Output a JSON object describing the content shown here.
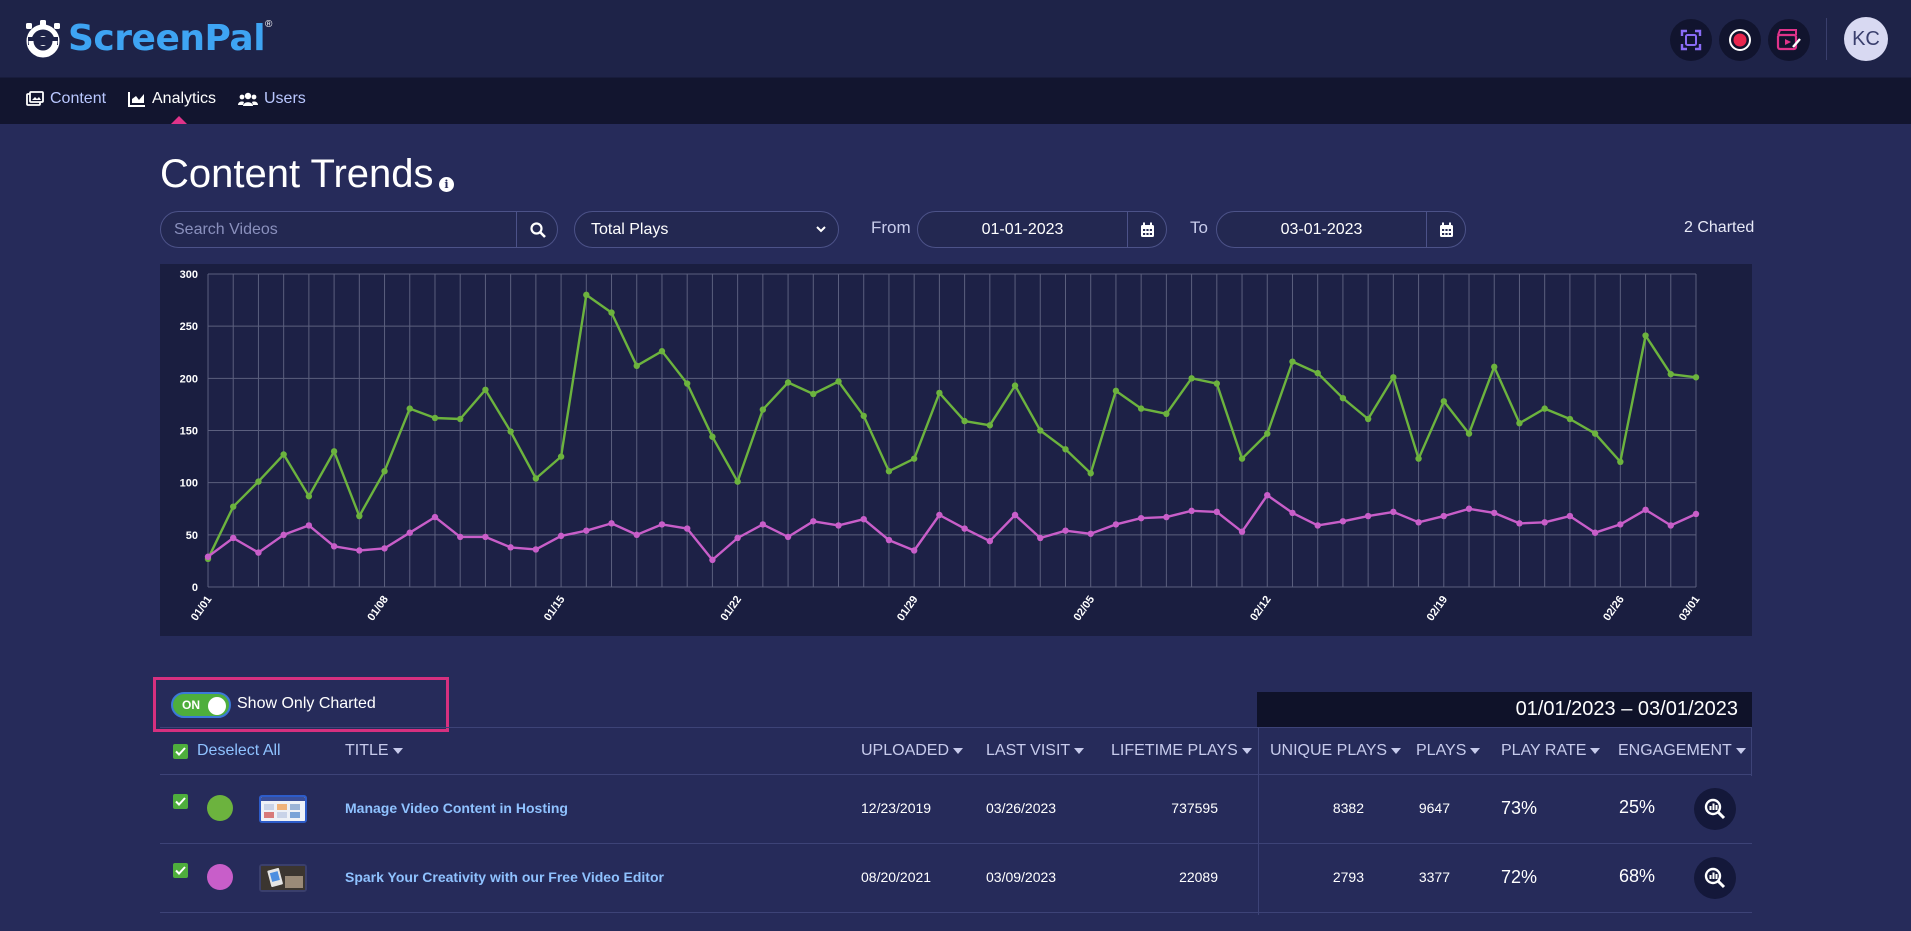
{
  "app": {
    "name": "ScreenPal",
    "avatar_initials": "KC"
  },
  "toolbar": {
    "capture_icon": "screen-capture-icon",
    "record_icon": "record-icon",
    "edit_icon": "video-edit-icon"
  },
  "nav": {
    "items": [
      {
        "label": "Content",
        "icon": "content-icon"
      },
      {
        "label": "Analytics",
        "icon": "analytics-icon"
      },
      {
        "label": "Users",
        "icon": "users-icon"
      }
    ]
  },
  "page": {
    "title": "Content Trends"
  },
  "controls": {
    "search_placeholder": "Search Videos",
    "metric": "Total Plays",
    "from_label": "From",
    "from_date": "01-01-2023",
    "to_label": "To",
    "to_date": "03-01-2023",
    "charted_count": "2 Charted"
  },
  "chart_data": {
    "type": "line",
    "ylim": [
      0,
      300
    ],
    "y_ticks": [
      0,
      50,
      100,
      150,
      200,
      250,
      300
    ],
    "x_tick_labels": [
      "01/01",
      "01/08",
      "01/15",
      "01/22",
      "01/29",
      "02/05",
      "02/12",
      "02/19",
      "02/26",
      "03/01"
    ],
    "grid": true,
    "x": [
      "01/01",
      "01/02",
      "01/03",
      "01/04",
      "01/05",
      "01/06",
      "01/07",
      "01/08",
      "01/09",
      "01/10",
      "01/11",
      "01/12",
      "01/13",
      "01/14",
      "01/15",
      "01/16",
      "01/17",
      "01/18",
      "01/19",
      "01/20",
      "01/21",
      "01/22",
      "01/23",
      "01/24",
      "01/25",
      "01/26",
      "01/27",
      "01/28",
      "01/29",
      "01/30",
      "01/31",
      "02/01",
      "02/02",
      "02/03",
      "02/04",
      "02/05",
      "02/06",
      "02/07",
      "02/08",
      "02/09",
      "02/10",
      "02/11",
      "02/12",
      "02/13",
      "02/14",
      "02/15",
      "02/16",
      "02/17",
      "02/18",
      "02/19",
      "02/20",
      "02/21",
      "02/22",
      "02/23",
      "02/24",
      "02/25",
      "02/26",
      "02/27",
      "02/28",
      "03/01"
    ],
    "series": [
      {
        "color": "#6cb33e",
        "values": [
          27,
          77,
          101,
          127,
          87,
          130,
          68,
          111,
          171,
          162,
          161,
          189,
          149,
          104,
          125,
          280,
          263,
          212,
          226,
          195,
          144,
          101,
          170,
          196,
          185,
          197,
          164,
          111,
          123,
          186,
          159,
          155,
          193,
          150,
          132,
          109,
          188,
          171,
          166,
          200,
          195,
          123,
          147,
          216,
          205,
          181,
          161,
          201,
          123,
          178,
          147,
          211,
          157,
          171,
          161,
          147,
          120,
          241,
          204,
          201
        ]
      },
      {
        "color": "#c85ec9",
        "values": [
          29,
          47,
          33,
          50,
          59,
          39,
          35,
          37,
          52,
          67,
          48,
          48,
          38,
          36,
          49,
          54,
          61,
          50,
          60,
          56,
          26,
          47,
          60,
          48,
          63,
          59,
          65,
          45,
          35,
          69,
          56,
          44,
          69,
          47,
          54,
          51,
          60,
          66,
          67,
          73,
          72,
          53,
          88,
          71,
          59,
          63,
          68,
          72,
          62,
          68,
          75,
          71,
          61,
          62,
          68,
          52,
          60,
          74,
          59,
          70
        ]
      }
    ]
  },
  "filter": {
    "toggle_state": "ON",
    "toggle_label": "Show Only Charted",
    "date_range": "01/01/2023 – 03/01/2023"
  },
  "table": {
    "deselect_label": "Deselect All",
    "headers": {
      "title": "TITLE",
      "uploaded": "UPLOADED",
      "last_visit": "LAST VISIT",
      "lifetime_plays": "LIFETIME PLAYS",
      "unique_plays": "UNIQUE PLAYS",
      "plays": "PLAYS",
      "play_rate": "PLAY RATE",
      "engagement": "ENGAGEMENT"
    },
    "rows": [
      {
        "color": "#6cb33e",
        "title": "Manage Video Content in Hosting",
        "uploaded": "12/23/2019",
        "last_visit": "03/26/2023",
        "lifetime_plays": "737595",
        "unique_plays": "8382",
        "plays": "9647",
        "play_rate": "73%",
        "engagement": "25%"
      },
      {
        "color": "#c85ec9",
        "title": "Spark Your Creativity with our Free Video Editor",
        "uploaded": "08/20/2021",
        "last_visit": "03/09/2023",
        "lifetime_plays": "22089",
        "unique_plays": "2793",
        "plays": "3377",
        "play_rate": "72%",
        "engagement": "68%"
      }
    ]
  }
}
